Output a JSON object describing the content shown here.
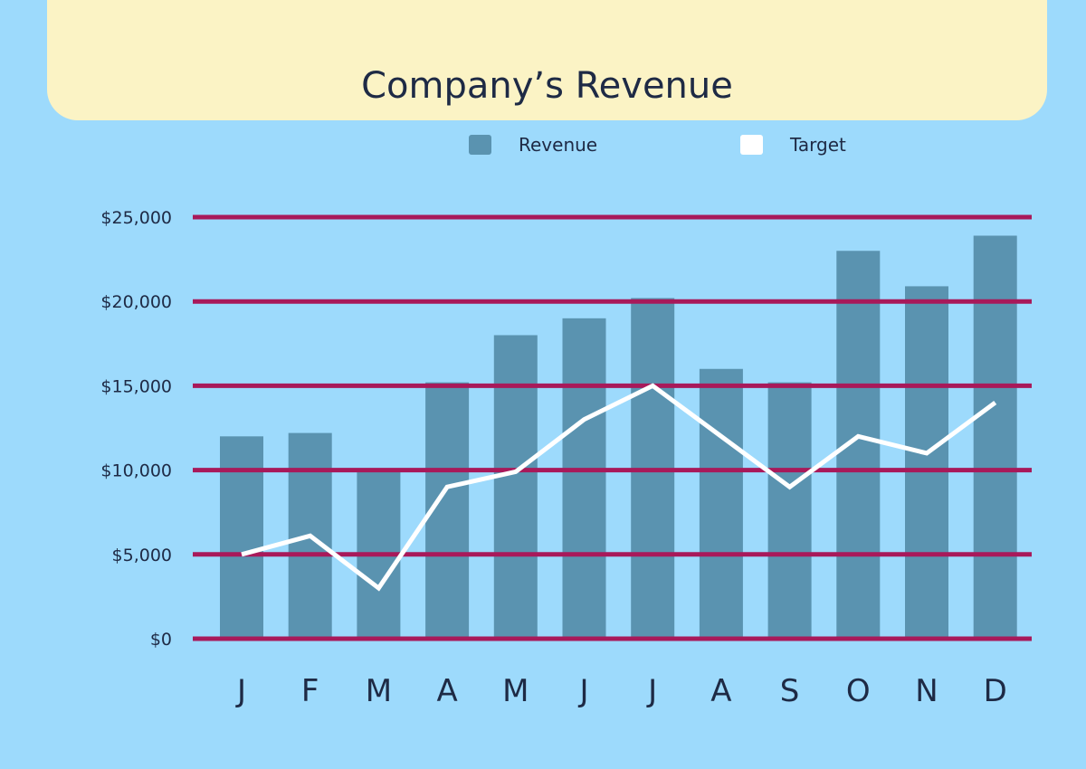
{
  "chart_data": {
    "type": "bar",
    "title": "Company’s Revenue",
    "categories": [
      "J",
      "F",
      "M",
      "A",
      "M",
      "J",
      "J",
      "A",
      "S",
      "O",
      "N",
      "D"
    ],
    "series": [
      {
        "name": "Revenue",
        "kind": "bar",
        "color": "#5a93b0",
        "values": [
          12000,
          12200,
          10000,
          15200,
          18000,
          19000,
          20200,
          16000,
          15200,
          23000,
          20900,
          23900
        ]
      },
      {
        "name": "Target",
        "kind": "line",
        "color": "#ffffff",
        "values": [
          5000,
          6100,
          3000,
          9000,
          9900,
          13000,
          15000,
          12000,
          9000,
          12000,
          11000,
          14000
        ]
      }
    ],
    "yticks": [
      0,
      5000,
      10000,
      15000,
      20000,
      25000
    ],
    "ytick_labels": [
      "$0",
      "$5,000",
      "$10,000",
      "$15,000",
      "$20,000",
      "$25,000"
    ],
    "ylim": [
      0,
      25000
    ],
    "grid": true,
    "grid_color": "#a8195a",
    "legend_position": "top-center",
    "xlabel": "",
    "ylabel": ""
  }
}
